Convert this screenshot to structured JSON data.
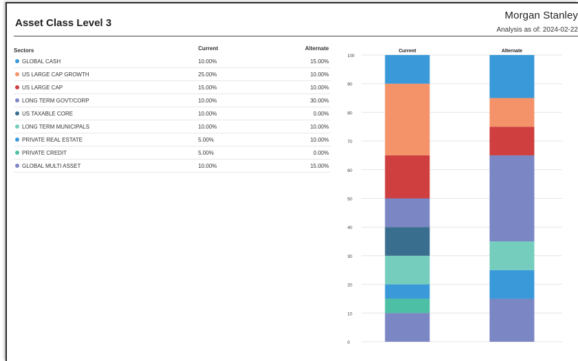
{
  "header": {
    "title": "Asset Class Level 3",
    "brand": "Morgan Stanley",
    "as_of_label": "Analysis as of:",
    "as_of_date": "2024-02-22"
  },
  "table": {
    "columns": [
      "Sectors",
      "Current",
      "Alternate"
    ],
    "rows": [
      {
        "sector": "GLOBAL CASH",
        "current": "10.00%",
        "alternate": "15.00%",
        "color": "#3a9ad9"
      },
      {
        "sector": "US LARGE CAP GROWTH",
        "current": "25.00%",
        "alternate": "10.00%",
        "color": "#f4936a"
      },
      {
        "sector": "US LARGE CAP",
        "current": "15.00%",
        "alternate": "10.00%",
        "color": "#cf3f3f"
      },
      {
        "sector": "LONG TERM GOVT/CORP",
        "current": "10.00%",
        "alternate": "30.00%",
        "color": "#7b86c4"
      },
      {
        "sector": "US TAXABLE CORE",
        "current": "10.00%",
        "alternate": "0.00%",
        "color": "#3a6e8f"
      },
      {
        "sector": "LONG TERM MUNICIPALS",
        "current": "10.00%",
        "alternate": "10.00%",
        "color": "#74cdbd"
      },
      {
        "sector": "PRIVATE REAL ESTATE",
        "current": "5.00%",
        "alternate": "10.00%",
        "color": "#3a9ad9"
      },
      {
        "sector": "PRIVATE CREDIT",
        "current": "5.00%",
        "alternate": "0.00%",
        "color": "#4dbfa5"
      },
      {
        "sector": "GLOBAL MULTI ASSET",
        "current": "10.00%",
        "alternate": "15.00%",
        "color": "#7b86c4"
      }
    ]
  },
  "chart_data": {
    "type": "bar",
    "stacked": true,
    "categories": [
      "Current",
      "Alternate"
    ],
    "ylim": [
      0,
      100
    ],
    "yticks": [
      0,
      10,
      20,
      30,
      40,
      50,
      60,
      70,
      80,
      90,
      100
    ],
    "grid": true,
    "stack_order": [
      "GLOBAL MULTI ASSET",
      "PRIVATE CREDIT",
      "PRIVATE REAL ESTATE",
      "LONG TERM MUNICIPALS",
      "US TAXABLE CORE",
      "LONG TERM GOVT/CORP",
      "US LARGE CAP",
      "US LARGE CAP GROWTH",
      "GLOBAL CASH"
    ],
    "series": [
      {
        "name": "GLOBAL MULTI ASSET",
        "color": "#7b86c4",
        "values": [
          10,
          15
        ]
      },
      {
        "name": "PRIVATE CREDIT",
        "color": "#4dbfa5",
        "values": [
          5,
          0
        ]
      },
      {
        "name": "PRIVATE REAL ESTATE",
        "color": "#3a9ad9",
        "values": [
          5,
          10
        ]
      },
      {
        "name": "LONG TERM MUNICIPALS",
        "color": "#74cdbd",
        "values": [
          10,
          10
        ]
      },
      {
        "name": "US TAXABLE CORE",
        "color": "#3a6e8f",
        "values": [
          10,
          0
        ]
      },
      {
        "name": "LONG TERM GOVT/CORP",
        "color": "#7b86c4",
        "values": [
          10,
          30
        ]
      },
      {
        "name": "US LARGE CAP",
        "color": "#cf3f3f",
        "values": [
          15,
          10
        ]
      },
      {
        "name": "US LARGE CAP GROWTH",
        "color": "#f4936a",
        "values": [
          25,
          10
        ]
      },
      {
        "name": "GLOBAL CASH",
        "color": "#3a9ad9",
        "values": [
          10,
          15
        ]
      }
    ]
  }
}
